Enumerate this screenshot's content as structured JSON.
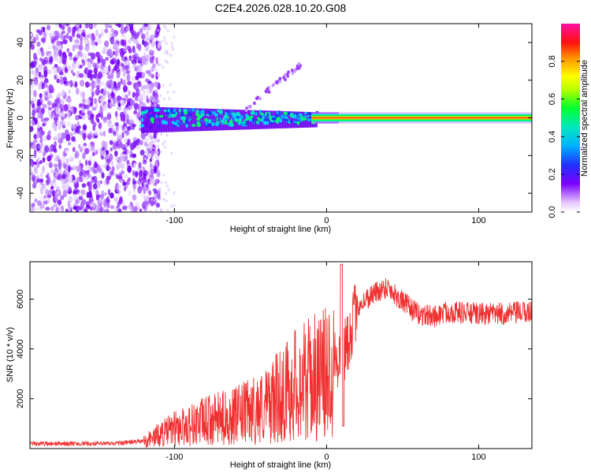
{
  "title": "C2E4.2026.028.10.20.G08",
  "colors": {
    "snr_line": "#f03030",
    "frame": "#000000",
    "background": "#ffffff"
  },
  "chart_data": [
    {
      "type": "heatmap",
      "name": "spectrogram",
      "xlabel": "Height of straight line (km)",
      "ylabel": "Frequency (Hz)",
      "xlim": [
        -195,
        135
      ],
      "ylim": [
        -50,
        50
      ],
      "xticks": [
        -100,
        0,
        100
      ],
      "xtick_labels": [
        "-100",
        "0",
        "100"
      ],
      "yticks": [
        -40,
        -20,
        0,
        20,
        40
      ],
      "ytick_labels": [
        "-40",
        "-20",
        "0",
        "20",
        "40"
      ],
      "carrier_frequency_hz": 0,
      "noise_region_km": [
        -195,
        -120
      ],
      "colorbar": {
        "label": "Normalized spectral amplitude",
        "range": [
          0,
          1
        ],
        "ticks": [
          0.0,
          0.2,
          0.4,
          0.6,
          0.8
        ],
        "tick_labels": [
          "0.0",
          "0.2",
          "0.4",
          "0.6",
          "0.8"
        ]
      }
    },
    {
      "type": "line",
      "name": "snr",
      "xlabel": "Height of straight line (km)",
      "ylabel": "SNR (10 * v/v)",
      "xlim": [
        -195,
        135
      ],
      "ylim": [
        0,
        7500
      ],
      "xticks": [
        -100,
        0,
        100
      ],
      "xtick_labels": [
        "-100",
        "0",
        "100"
      ],
      "yticks": [
        2000,
        4000,
        6000
      ],
      "ytick_labels": [
        "2000",
        "4000",
        "6000"
      ],
      "envelope": {
        "x": [
          -195,
          -140,
          -120,
          -100,
          -80,
          -60,
          -40,
          -20,
          -10,
          0,
          5,
          10,
          15,
          20,
          30,
          40,
          50,
          60,
          70,
          80,
          100,
          120,
          135
        ],
        "y": [
          200,
          200,
          300,
          800,
          1100,
          1300,
          1700,
          2600,
          2800,
          3000,
          3900,
          3400,
          4600,
          5700,
          6200,
          6500,
          5900,
          5400,
          5300,
          5500,
          5400,
          5400,
          5500
        ]
      }
    }
  ]
}
